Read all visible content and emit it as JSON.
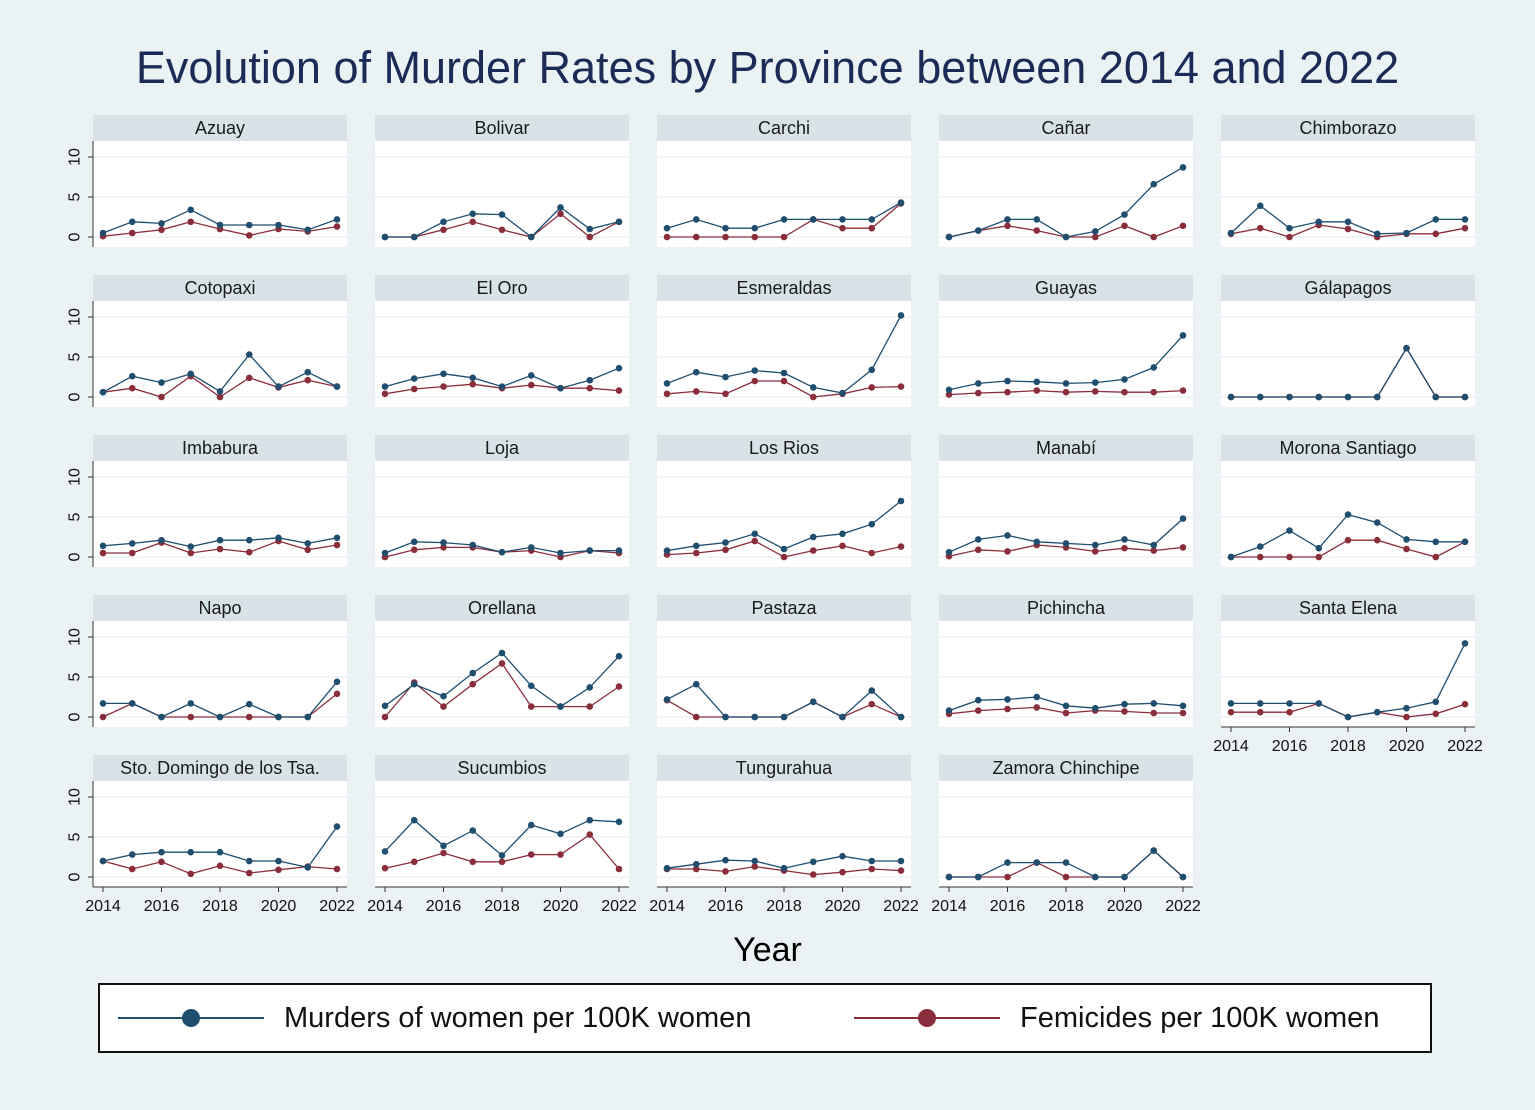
{
  "chart_data": {
    "type": "line",
    "title": "Evolution of Murder Rates by Province between 2014 and 2022",
    "xlabel": "Year",
    "ylabel": "",
    "x": [
      2014,
      2015,
      2016,
      2017,
      2018,
      2019,
      2020,
      2021,
      2022
    ],
    "xticks": [
      "2014",
      "2016",
      "2018",
      "2020",
      "2022"
    ],
    "yticks": [
      "0",
      "5",
      "10"
    ],
    "ylim": [
      0,
      11.5
    ],
    "grid": "horizontal",
    "legend_position": "bottom",
    "colors": {
      "murders": "#1f4e6e",
      "femicides": "#8b2e3c"
    },
    "series": [
      {
        "name": "Murders of women per 100K women"
      },
      {
        "name": "Femicides per 100K women"
      }
    ],
    "panels": [
      {
        "province": "Azuay",
        "murders": [
          0.5,
          1.9,
          1.7,
          3.4,
          1.5,
          1.5,
          1.5,
          0.9,
          2.2
        ],
        "femicides": [
          0.1,
          0.5,
          0.9,
          1.9,
          1.0,
          0.2,
          1.0,
          0.7,
          1.3
        ]
      },
      {
        "province": "Bolivar",
        "murders": [
          0,
          0,
          1.9,
          2.9,
          2.8,
          0,
          3.7,
          1.0,
          1.9
        ],
        "femicides": [
          0,
          0,
          0.9,
          1.9,
          0.9,
          0,
          2.9,
          0,
          1.9
        ]
      },
      {
        "province": "Carchi",
        "murders": [
          1.1,
          2.2,
          1.1,
          1.1,
          2.2,
          2.2,
          2.2,
          2.2,
          4.3
        ],
        "femicides": [
          0,
          0,
          0,
          0,
          0,
          2.2,
          1.1,
          1.1,
          4.2
        ]
      },
      {
        "province": "Cañar",
        "murders": [
          0,
          0.8,
          2.2,
          2.2,
          0,
          0.7,
          2.8,
          6.6,
          8.7
        ],
        "femicides": [
          0,
          0.8,
          1.4,
          0.8,
          0,
          0,
          1.4,
          0,
          1.4
        ]
      },
      {
        "province": "Chimborazo",
        "murders": [
          0.5,
          3.9,
          1.1,
          1.9,
          1.9,
          0.4,
          0.5,
          2.2,
          2.2
        ],
        "femicides": [
          0.4,
          1.1,
          0,
          1.5,
          1.0,
          0,
          0.4,
          0.4,
          1.1
        ]
      },
      {
        "province": "Cotopaxi",
        "murders": [
          0.6,
          2.6,
          1.8,
          2.9,
          0.7,
          5.3,
          1.3,
          3.1,
          1.3
        ],
        "femicides": [
          0.6,
          1.1,
          0,
          2.6,
          0,
          2.4,
          1.2,
          2.1,
          1.3
        ]
      },
      {
        "province": "El Oro",
        "murders": [
          1.3,
          2.3,
          2.9,
          2.4,
          1.3,
          2.7,
          1.1,
          2.1,
          3.6
        ],
        "femicides": [
          0.4,
          1.0,
          1.3,
          1.6,
          1.1,
          1.5,
          1.1,
          1.1,
          0.8
        ]
      },
      {
        "province": "Esmeraldas",
        "murders": [
          1.7,
          3.1,
          2.5,
          3.3,
          3.0,
          1.2,
          0.5,
          3.4,
          10.2
        ],
        "femicides": [
          0.4,
          0.7,
          0.4,
          2.0,
          2.0,
          0,
          0.4,
          1.2,
          1.3
        ]
      },
      {
        "province": "Guayas",
        "murders": [
          0.9,
          1.7,
          2.0,
          1.9,
          1.7,
          1.8,
          2.2,
          3.7,
          7.7
        ],
        "femicides": [
          0.3,
          0.5,
          0.6,
          0.8,
          0.6,
          0.7,
          0.6,
          0.6,
          0.8
        ]
      },
      {
        "province": "Gálapagos",
        "murders": [
          0,
          0,
          0,
          0,
          0,
          0,
          6.1,
          0,
          0
        ],
        "femicides": [
          0,
          0,
          0,
          0,
          0,
          0,
          6.1,
          0,
          0
        ]
      },
      {
        "province": "Imbabura",
        "murders": [
          1.4,
          1.7,
          2.1,
          1.3,
          2.1,
          2.1,
          2.4,
          1.7,
          2.4
        ],
        "femicides": [
          0.5,
          0.5,
          1.8,
          0.5,
          1.0,
          0.6,
          2.0,
          0.9,
          1.5
        ]
      },
      {
        "province": "Loja",
        "murders": [
          0.5,
          1.9,
          1.8,
          1.5,
          0.6,
          1.2,
          0.5,
          0.8,
          0.8
        ],
        "femicides": [
          0,
          0.9,
          1.2,
          1.2,
          0.6,
          0.8,
          0,
          0.8,
          0.5
        ]
      },
      {
        "province": "Los Rios",
        "murders": [
          0.8,
          1.4,
          1.8,
          2.9,
          1.0,
          2.5,
          2.9,
          4.1,
          7.0
        ],
        "femicides": [
          0.3,
          0.5,
          0.9,
          2.0,
          0,
          0.8,
          1.4,
          0.5,
          1.3
        ]
      },
      {
        "province": "Manabí",
        "murders": [
          0.6,
          2.2,
          2.7,
          1.9,
          1.7,
          1.5,
          2.2,
          1.5,
          4.8
        ],
        "femicides": [
          0.1,
          0.9,
          0.7,
          1.5,
          1.2,
          0.7,
          1.1,
          0.8,
          1.2
        ]
      },
      {
        "province": "Morona Santiago",
        "murders": [
          0,
          1.3,
          3.3,
          1.1,
          5.3,
          4.3,
          2.2,
          1.9,
          1.9
        ],
        "femicides": [
          0,
          0,
          0,
          0,
          2.1,
          2.1,
          1.0,
          0,
          1.9
        ]
      },
      {
        "province": "Napo",
        "murders": [
          1.7,
          1.7,
          0,
          1.7,
          0,
          1.6,
          0,
          0,
          4.4
        ],
        "femicides": [
          0,
          1.7,
          0,
          0,
          0,
          0,
          0,
          0,
          2.9
        ]
      },
      {
        "province": "Orellana",
        "murders": [
          1.4,
          4.1,
          2.6,
          5.5,
          8.0,
          3.9,
          1.3,
          3.7,
          7.6
        ],
        "femicides": [
          0,
          4.3,
          1.3,
          4.1,
          6.7,
          1.3,
          1.3,
          1.3,
          3.8
        ]
      },
      {
        "province": "Pastaza",
        "murders": [
          2.2,
          4.1,
          0,
          0,
          0,
          1.9,
          0,
          3.3,
          0
        ],
        "femicides": [
          2.1,
          0,
          0,
          0,
          0,
          1.9,
          0,
          1.6,
          0
        ]
      },
      {
        "province": "Pichincha",
        "murders": [
          0.8,
          2.1,
          2.2,
          2.5,
          1.4,
          1.1,
          1.6,
          1.7,
          1.4
        ],
        "femicides": [
          0.4,
          0.8,
          1.0,
          1.2,
          0.5,
          0.8,
          0.7,
          0.5,
          0.5
        ]
      },
      {
        "province": "Santa Elena",
        "murders": [
          1.7,
          1.7,
          1.7,
          1.7,
          0,
          0.6,
          1.1,
          1.9,
          9.2
        ],
        "femicides": [
          0.6,
          0.6,
          0.6,
          1.7,
          0,
          0.6,
          0,
          0.4,
          1.6
        ]
      },
      {
        "province": "Sto. Domingo de los Tsa.",
        "murders": [
          2.0,
          2.8,
          3.1,
          3.1,
          3.1,
          2.0,
          2.0,
          1.2,
          6.3
        ],
        "femicides": [
          2.0,
          1.0,
          1.9,
          0.4,
          1.4,
          0.5,
          0.9,
          1.3,
          1.0
        ]
      },
      {
        "province": "Sucumbios",
        "murders": [
          3.2,
          7.1,
          3.9,
          5.8,
          2.7,
          6.5,
          5.4,
          7.1,
          6.9
        ],
        "femicides": [
          1.1,
          1.9,
          3.0,
          1.9,
          1.9,
          2.8,
          2.8,
          5.3,
          1.0
        ]
      },
      {
        "province": "Tungurahua",
        "murders": [
          1.1,
          1.6,
          2.1,
          2.0,
          1.1,
          1.9,
          2.6,
          2.0,
          2.0
        ],
        "femicides": [
          1.0,
          1.0,
          0.7,
          1.3,
          0.8,
          0.3,
          0.6,
          1.0,
          0.8
        ]
      },
      {
        "province": "Zamora Chinchipe",
        "murders": [
          0,
          0,
          1.8,
          1.8,
          1.8,
          0,
          0,
          3.3,
          0
        ],
        "femicides": [
          0,
          0,
          0,
          1.8,
          0,
          0,
          0,
          3.3,
          0
        ]
      }
    ]
  }
}
